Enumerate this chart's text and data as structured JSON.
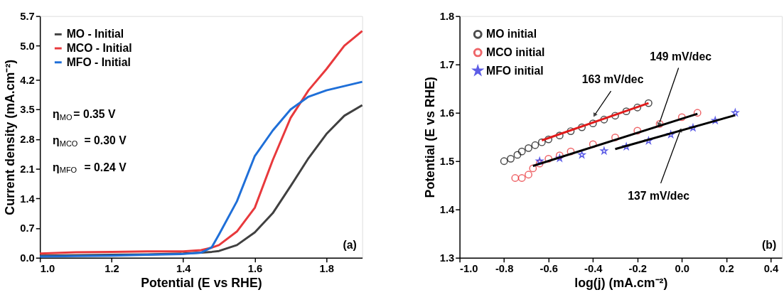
{
  "chart_data": [
    {
      "type": "line",
      "xlabel": "Potential (E vs RHE)",
      "ylabel": "Current density (mA.cm⁻²)",
      "xlim": [
        1.0,
        1.9
      ],
      "xticks": [
        {
          "value": 1.0,
          "label": "1.0"
        },
        1.2,
        1.4,
        1.6,
        1.8
      ],
      "ylim": [
        0,
        5.7
      ],
      "yticks": [
        {
          "value": 0,
          "label": "0.0"
        },
        0.7,
        1.4,
        2.1,
        2.8,
        3.5,
        4.2,
        {
          "value": 5.0,
          "label": "5.0"
        },
        5.7
      ],
      "grid": false,
      "legend": "top left",
      "line_style": "solid",
      "marker": "none",
      "x": [
        1.0,
        1.1,
        1.2,
        1.3,
        1.4,
        1.45,
        1.48,
        1.5,
        1.55,
        1.6,
        1.65,
        1.7,
        1.75,
        1.8,
        1.85,
        1.9
      ],
      "series": [
        {
          "name": "MO - Initial",
          "color": "#404040",
          "values": [
            0.05,
            0.06,
            0.07,
            0.08,
            0.1,
            0.12,
            0.14,
            0.16,
            0.3,
            0.6,
            1.05,
            1.69,
            2.35,
            2.92,
            3.35,
            3.6
          ]
        },
        {
          "name": "MCO - Initial",
          "color": "#e8393c",
          "values": [
            0.1,
            0.13,
            0.14,
            0.15,
            0.15,
            0.18,
            0.24,
            0.3,
            0.62,
            1.18,
            2.3,
            3.3,
            3.95,
            4.45,
            5.0,
            5.35
          ]
        },
        {
          "name": "MFO - Initial",
          "color": "#1f6fd8",
          "values": [
            0.03,
            0.04,
            0.05,
            0.07,
            0.09,
            0.12,
            0.25,
            0.55,
            1.33,
            2.4,
            3.0,
            3.5,
            3.8,
            3.95,
            4.05,
            4.15
          ]
        }
      ],
      "annotations": [
        "η$_{MO}$= 0.35 V",
        "η$_{MCO}$ = 0.30 V",
        "η$_{MFO}$ = 0.24 V",
        "(a)"
      ]
    },
    {
      "type": "scatter",
      "xlabel": "log(j) (mA.cm⁻²)",
      "ylabel": "Potential (E vs RHE)",
      "xlim": [
        -1.0,
        0.45
      ],
      "xticks": [
        {
          "value": -1.0,
          "label": "-1.0"
        },
        -0.8,
        -0.6,
        -0.4,
        -0.2,
        {
          "value": 0,
          "label": "0.0"
        },
        0.2,
        0.4
      ],
      "ylim": [
        1.3,
        1.8
      ],
      "yticks": [
        1.3,
        1.4,
        1.5,
        1.6,
        1.7,
        1.8
      ],
      "grid": false,
      "legend": "top left",
      "series": [
        {
          "name": "MO initial",
          "color": "#000000",
          "marker": "circle",
          "x": [
            -0.8,
            -0.77,
            -0.74,
            -0.72,
            -0.69,
            -0.66,
            -0.63,
            -0.6,
            -0.55,
            -0.5,
            -0.45,
            -0.4,
            -0.35,
            -0.3,
            -0.25,
            -0.2,
            -0.15
          ],
          "values": [
            1.5,
            1.505,
            1.513,
            1.52,
            1.527,
            1.533,
            1.539,
            1.545,
            1.553,
            1.562,
            1.57,
            1.578,
            1.586,
            1.594,
            1.603,
            1.611,
            1.62
          ]
        },
        {
          "name": "MCO initial",
          "color": "#e8262b",
          "marker": "circle",
          "x": [
            -0.75,
            -0.72,
            -0.69,
            -0.67,
            -0.64,
            -0.6,
            -0.55,
            -0.5,
            -0.4,
            -0.3,
            -0.2,
            -0.1,
            0.0,
            0.07
          ],
          "values": [
            1.465,
            1.465,
            1.472,
            1.485,
            1.495,
            1.505,
            1.512,
            1.52,
            1.535,
            1.549,
            1.563,
            1.577,
            1.591,
            1.6
          ]
        },
        {
          "name": "MFO initial",
          "color": "#1a1adc",
          "marker": "star",
          "x": [
            -0.64,
            -0.55,
            -0.45,
            -0.35,
            -0.25,
            -0.15,
            -0.05,
            0.05,
            0.15,
            0.24
          ],
          "values": [
            1.5,
            1.506,
            1.513,
            1.521,
            1.53,
            1.542,
            1.555,
            1.569,
            1.584,
            1.6
          ]
        },
        {
          "type": "line",
          "color": "#e01b1b",
          "x": [
            -0.63,
            -0.15
          ],
          "values": [
            1.543,
            1.62
          ]
        },
        {
          "type": "line",
          "color": "#000000",
          "x": [
            -0.67,
            0.07
          ],
          "values": [
            1.49,
            1.598
          ]
        },
        {
          "type": "line",
          "color": "#000000",
          "x": [
            -0.3,
            0.24
          ],
          "values": [
            1.525,
            1.595
          ]
        }
      ],
      "annotations": [
        {
          "text": "163 mV/dec",
          "x": -0.39,
          "y": 1.597
        },
        {
          "text": "149 mV/dec",
          "x": -0.1,
          "y": 1.58
        },
        {
          "text": "137 mV/dec",
          "x": -0.01,
          "y": 1.56
        },
        "(b)"
      ]
    }
  ]
}
